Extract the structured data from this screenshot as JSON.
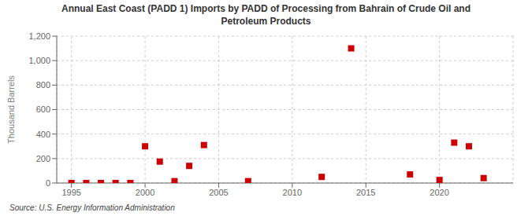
{
  "chart_data": {
    "type": "scatter",
    "title": "Annual East Coast (PADD 1) Imports by PADD of Processing from Bahrain of Crude Oil and\nPetroleum Products",
    "ylabel": "Thousand Barrels",
    "source": "Source: U.S. Energy Information Administration",
    "x": [
      1995,
      1996,
      1997,
      1998,
      1999,
      2000,
      2001,
      2002,
      2003,
      2004,
      2007,
      2012,
      2014,
      2018,
      2020,
      2021,
      2022,
      2023
    ],
    "values": [
      0,
      0,
      0,
      0,
      0,
      300,
      175,
      15,
      140,
      310,
      15,
      50,
      1100,
      70,
      25,
      330,
      300,
      40
    ],
    "color": "#cc0000",
    "marker": "square",
    "xlim": [
      1994,
      2025
    ],
    "xticks": [
      1995,
      2000,
      2005,
      2010,
      2015,
      2020
    ],
    "ylim": [
      0,
      1200
    ],
    "yticks": [
      0,
      200,
      400,
      600,
      800,
      {
        "value": 1000,
        "label": "1,000"
      },
      {
        "value": 1200,
        "label": "1,200"
      }
    ],
    "grid": true
  }
}
